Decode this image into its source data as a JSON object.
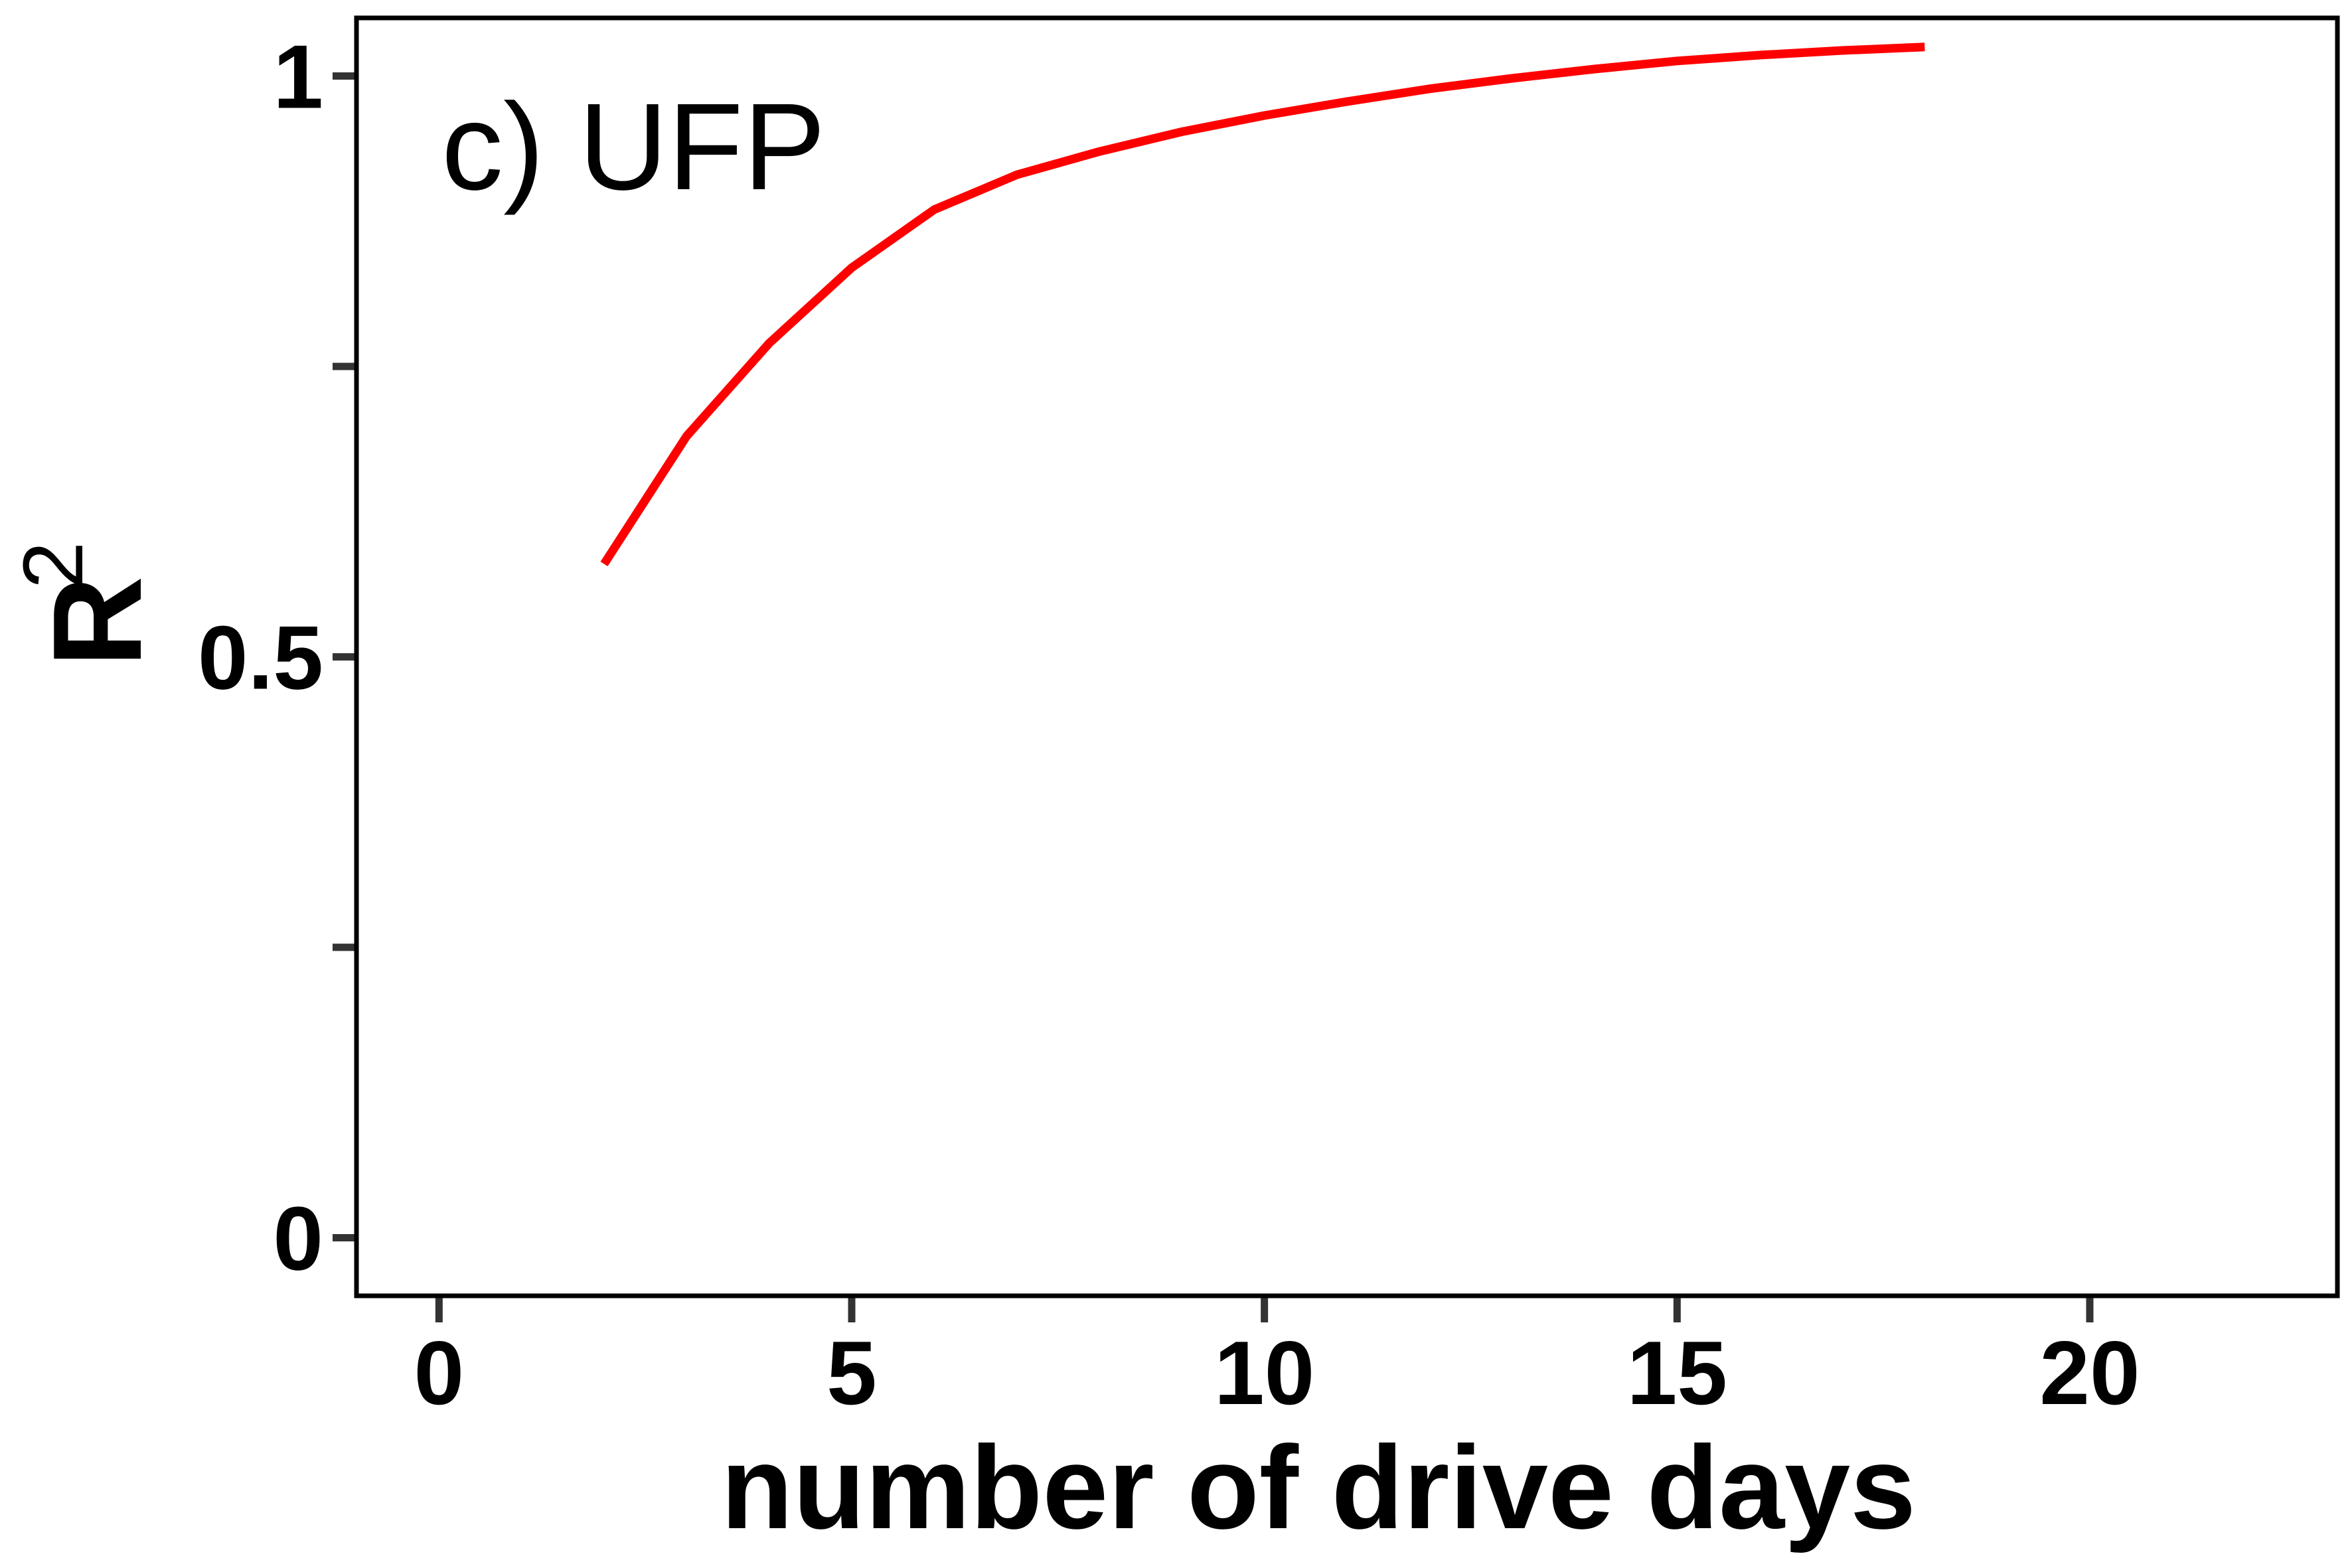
{
  "chart_data": {
    "type": "line",
    "panel_label": "c) UFP",
    "xlabel": "number of drive days",
    "ylabel": {
      "base": "R",
      "sup": "2"
    },
    "xlim": [
      -1,
      23
    ],
    "ylim": [
      -0.05,
      1.05
    ],
    "xticks": [
      0,
      5,
      10,
      15,
      20
    ],
    "xtick_labels": [
      "0",
      "5",
      "10",
      "15",
      "20"
    ],
    "yticks": [
      0,
      0.25,
      0.5,
      0.75,
      1
    ],
    "ytick_labels": [
      "0",
      "",
      "0.5",
      "",
      "1"
    ],
    "grid": false,
    "series": [
      {
        "name": "UFP",
        "color": "#ff0000",
        "x": [
          2,
          3,
          4,
          5,
          6,
          7,
          8,
          9,
          10,
          11,
          12,
          13,
          14,
          15,
          16,
          17,
          18
        ],
        "y": [
          0.58,
          0.69,
          0.77,
          0.835,
          0.885,
          0.915,
          0.935,
          0.952,
          0.966,
          0.978,
          0.989,
          0.998,
          1.006,
          1.013,
          1.018,
          1.022,
          1.025
        ]
      }
    ]
  }
}
